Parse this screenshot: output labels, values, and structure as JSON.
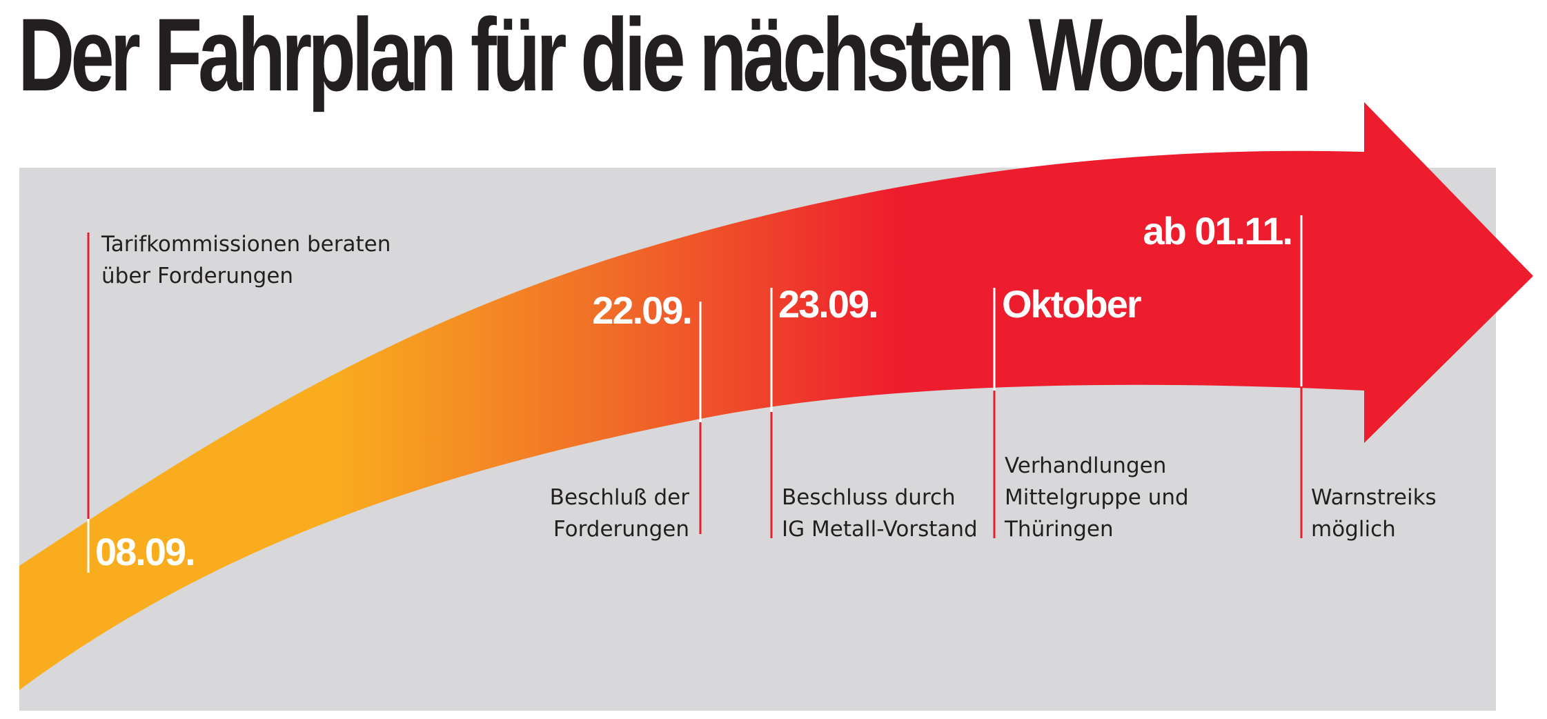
{
  "title": "Der Fahrplan für die nächsten Wochen",
  "colors": {
    "panel": "#d8d8da",
    "arrow_start": "#f9ad1e",
    "arrow_end": "#ee1d2d",
    "marker_line": "#e3202c",
    "text_dark": "#231f20",
    "date_text": "#ffffff"
  },
  "timeline": [
    {
      "date": "08.09.",
      "lines": [
        "Tarifkommissionen beraten",
        "über Forderungen"
      ]
    },
    {
      "date": "22.09.",
      "lines": [
        "Beschluß der",
        "Forderungen"
      ]
    },
    {
      "date": "23.09.",
      "lines": [
        "Beschluss durch",
        "IG Metall-Vorstand"
      ]
    },
    {
      "date": "Oktober",
      "lines": [
        "Verhandlungen",
        "Mittelgruppe und",
        "Thüringen"
      ]
    },
    {
      "date": "ab 01.11.",
      "lines": [
        "Warnstreiks",
        "möglich"
      ]
    }
  ]
}
